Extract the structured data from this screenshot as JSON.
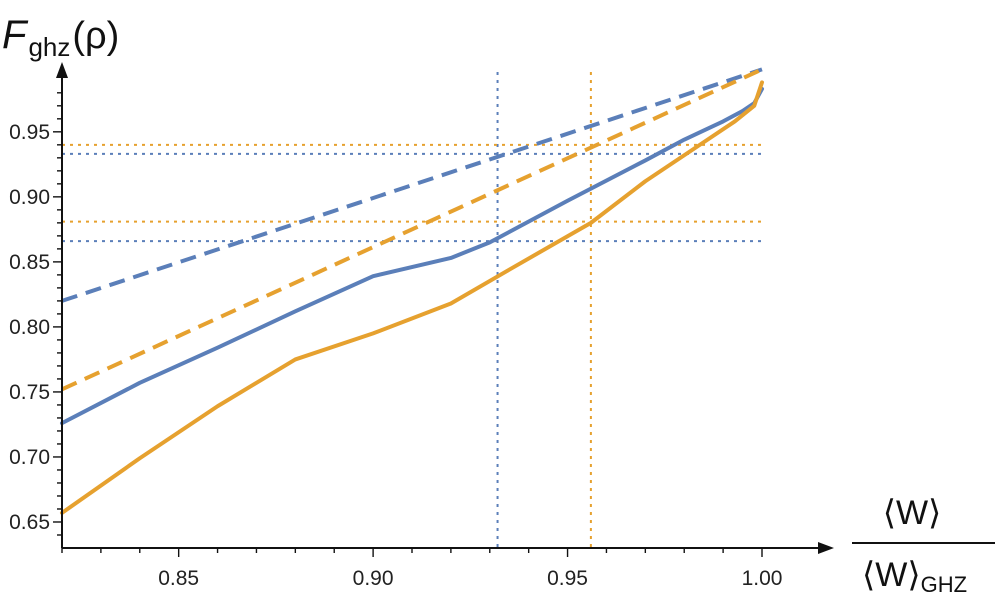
{
  "chart_data": {
    "type": "line",
    "ylabel": {
      "main": "F",
      "sub": "ghz",
      "arg": "(ρ)"
    },
    "xlabel": {
      "numerator": "⟨W⟩",
      "denominator": "⟨W⟩",
      "denominator_sub": "GHZ"
    },
    "xlim": [
      0.82,
      1.0
    ],
    "ylim": [
      0.63,
      0.98
    ],
    "x_ticks": [
      "0.85",
      "0.90",
      "0.95",
      "1.00"
    ],
    "y_ticks": [
      "0.65",
      "0.70",
      "0.75",
      "0.80",
      "0.85",
      "0.90",
      "0.95"
    ],
    "grid": false,
    "colors": {
      "blue": "#5b7fb9",
      "orange": "#e6a12f"
    },
    "series": [
      {
        "color": "blue",
        "style": "solid",
        "points": [
          [
            0.82,
            0.726
          ],
          [
            0.84,
            0.757
          ],
          [
            0.86,
            0.784
          ],
          [
            0.88,
            0.812
          ],
          [
            0.9,
            0.839
          ],
          [
            0.92,
            0.853
          ],
          [
            0.93,
            0.865
          ],
          [
            0.95,
            0.897
          ],
          [
            0.97,
            0.928
          ],
          [
            0.98,
            0.944
          ],
          [
            0.99,
            0.958
          ],
          [
            0.995,
            0.966
          ],
          [
            0.998,
            0.972
          ],
          [
            1.0,
            0.983
          ]
        ]
      },
      {
        "color": "orange",
        "style": "solid",
        "points": [
          [
            0.82,
            0.657
          ],
          [
            0.84,
            0.699
          ],
          [
            0.86,
            0.739
          ],
          [
            0.88,
            0.775
          ],
          [
            0.9,
            0.795
          ],
          [
            0.92,
            0.818
          ],
          [
            0.935,
            0.844
          ],
          [
            0.956,
            0.88
          ],
          [
            0.97,
            0.912
          ],
          [
            0.985,
            0.942
          ],
          [
            0.993,
            0.958
          ],
          [
            0.998,
            0.97
          ],
          [
            1.0,
            0.988
          ]
        ]
      },
      {
        "color": "blue",
        "style": "dashed",
        "points": [
          [
            0.82,
            0.82
          ],
          [
            1.0,
            0.998
          ]
        ]
      },
      {
        "color": "orange",
        "style": "dashed",
        "points": [
          [
            0.82,
            0.752
          ],
          [
            1.0,
            0.998
          ]
        ]
      }
    ],
    "reference_lines": {
      "vertical": [
        {
          "x": 0.932,
          "color": "blue"
        },
        {
          "x": 0.956,
          "color": "orange"
        }
      ],
      "horizontal": [
        {
          "y": 0.94,
          "color": "orange"
        },
        {
          "y": 0.933,
          "color": "blue"
        },
        {
          "y": 0.881,
          "color": "orange"
        },
        {
          "y": 0.866,
          "color": "blue"
        }
      ]
    }
  }
}
